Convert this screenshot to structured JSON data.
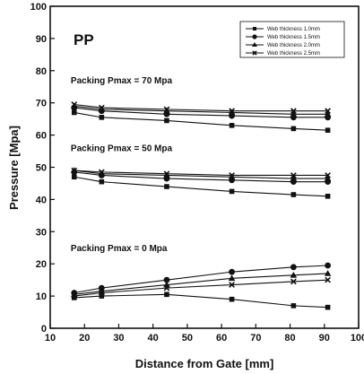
{
  "chart_data": {
    "type": "line",
    "title": "",
    "xlabel": "Distance from Gate [mm]",
    "ylabel": "Pressure [Mpa]",
    "xlim": [
      10,
      100
    ],
    "ylim": [
      0,
      100
    ],
    "xticks": [
      10,
      20,
      30,
      40,
      50,
      60,
      70,
      80,
      90,
      100
    ],
    "yticks": [
      0,
      10,
      20,
      30,
      40,
      50,
      60,
      70,
      80,
      90,
      100
    ],
    "grid": false,
    "legend_position": "top-right",
    "material_label": "PP",
    "annotations": [
      {
        "text": "Packing Pmax = 70 Mpa",
        "x": 16,
        "y": 76
      },
      {
        "text": "Packing Pmax = 50 Mpa",
        "x": 16,
        "y": 55
      },
      {
        "text": "Packing Pmax = 0 Mpa",
        "x": 16,
        "y": 24
      }
    ],
    "legend": [
      {
        "name": "Web thickness 1.0mm",
        "marker": "square"
      },
      {
        "name": "Web thickness 1.5mm",
        "marker": "circle"
      },
      {
        "name": "Web thickness 2.0mm",
        "marker": "triangle"
      },
      {
        "name": "Web thickness 2.5mm",
        "marker": "x"
      }
    ],
    "x": [
      17,
      25,
      44,
      63,
      81,
      91
    ],
    "series": [
      {
        "group": "Packing Pmax = 70 Mpa",
        "legend_index": 0,
        "values": [
          67,
          65.5,
          64.5,
          63,
          62,
          61.5
        ]
      },
      {
        "group": "Packing Pmax = 70 Mpa",
        "legend_index": 1,
        "values": [
          68.5,
          67.5,
          66.5,
          66,
          65.5,
          65.5
        ]
      },
      {
        "group": "Packing Pmax = 70 Mpa",
        "legend_index": 2,
        "values": [
          69,
          68,
          67.5,
          67,
          66.5,
          66.5
        ]
      },
      {
        "group": "Packing Pmax = 70 Mpa",
        "legend_index": 3,
        "values": [
          69.5,
          68.5,
          68,
          67.5,
          67.5,
          67.5
        ]
      },
      {
        "group": "Packing Pmax = 50 Mpa",
        "legend_index": 0,
        "values": [
          47,
          45.5,
          44,
          42.5,
          41.5,
          41
        ]
      },
      {
        "group": "Packing Pmax = 50 Mpa",
        "legend_index": 1,
        "values": [
          48.5,
          47.5,
          46.5,
          46,
          45.5,
          45.5
        ]
      },
      {
        "group": "Packing Pmax = 50 Mpa",
        "legend_index": 2,
        "values": [
          49,
          48,
          47.5,
          47,
          46.5,
          46.5
        ]
      },
      {
        "group": "Packing Pmax = 50 Mpa",
        "legend_index": 3,
        "values": [
          49,
          48.5,
          48,
          47.5,
          47.5,
          47.5
        ]
      },
      {
        "group": "Packing Pmax = 0 Mpa",
        "legend_index": 0,
        "values": [
          9.5,
          10,
          10.5,
          9,
          7,
          6.5
        ]
      },
      {
        "group": "Packing Pmax = 0 Mpa",
        "legend_index": 1,
        "values": [
          11,
          12.5,
          15,
          17.5,
          19,
          19.5
        ]
      },
      {
        "group": "Packing Pmax = 0 Mpa",
        "legend_index": 2,
        "values": [
          10.5,
          11.5,
          13.5,
          15.5,
          16.5,
          17
        ]
      },
      {
        "group": "Packing Pmax = 0 Mpa",
        "legend_index": 3,
        "values": [
          10,
          11,
          12.5,
          13.5,
          14.5,
          15
        ]
      }
    ]
  }
}
